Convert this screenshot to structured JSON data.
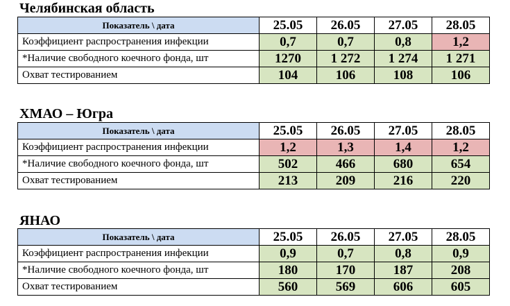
{
  "header_label": "Показатель \\ дата",
  "dates": [
    "25.05",
    "26.05",
    "27.05",
    "28.05"
  ],
  "row_labels": [
    "Коэффициент распространения инфекции",
    "*Наличие свободного коечного фонда, шт",
    "Охват тестированием"
  ],
  "colors": {
    "good": "#d7e5c1",
    "bad": "#e9b5b5",
    "header": "#ccdcf2"
  },
  "regions": [
    {
      "title": "Челябинская область",
      "rows": [
        [
          {
            "v": "0,7",
            "s": "good"
          },
          {
            "v": "0,7",
            "s": "good"
          },
          {
            "v": "0,8",
            "s": "good"
          },
          {
            "v": "1,2",
            "s": "bad"
          }
        ],
        [
          {
            "v": "1270",
            "s": "good"
          },
          {
            "v": "1 272",
            "s": "good"
          },
          {
            "v": "1 274",
            "s": "good"
          },
          {
            "v": "1 271",
            "s": "good"
          }
        ],
        [
          {
            "v": "104",
            "s": "good"
          },
          {
            "v": "106",
            "s": "good"
          },
          {
            "v": "108",
            "s": "good"
          },
          {
            "v": "106",
            "s": "good"
          }
        ]
      ]
    },
    {
      "title": "ХМАО – Югра",
      "rows": [
        [
          {
            "v": "1,2",
            "s": "bad"
          },
          {
            "v": "1,3",
            "s": "bad"
          },
          {
            "v": "1,4",
            "s": "bad"
          },
          {
            "v": "1,2",
            "s": "bad"
          }
        ],
        [
          {
            "v": "502",
            "s": "good"
          },
          {
            "v": "466",
            "s": "good"
          },
          {
            "v": "680",
            "s": "good"
          },
          {
            "v": "654",
            "s": "good"
          }
        ],
        [
          {
            "v": "213",
            "s": "good"
          },
          {
            "v": "209",
            "s": "good"
          },
          {
            "v": "216",
            "s": "good"
          },
          {
            "v": "220",
            "s": "good"
          }
        ]
      ]
    },
    {
      "title": "ЯНАО",
      "rows": [
        [
          {
            "v": "0,9",
            "s": "good"
          },
          {
            "v": "0,7",
            "s": "good"
          },
          {
            "v": "0,8",
            "s": "good"
          },
          {
            "v": "0,9",
            "s": "good"
          }
        ],
        [
          {
            "v": "180",
            "s": "good"
          },
          {
            "v": "170",
            "s": "good"
          },
          {
            "v": "187",
            "s": "good"
          },
          {
            "v": "208",
            "s": "good"
          }
        ],
        [
          {
            "v": "560",
            "s": "good"
          },
          {
            "v": "569",
            "s": "good"
          },
          {
            "v": "606",
            "s": "good"
          },
          {
            "v": "605",
            "s": "good"
          }
        ]
      ]
    }
  ]
}
